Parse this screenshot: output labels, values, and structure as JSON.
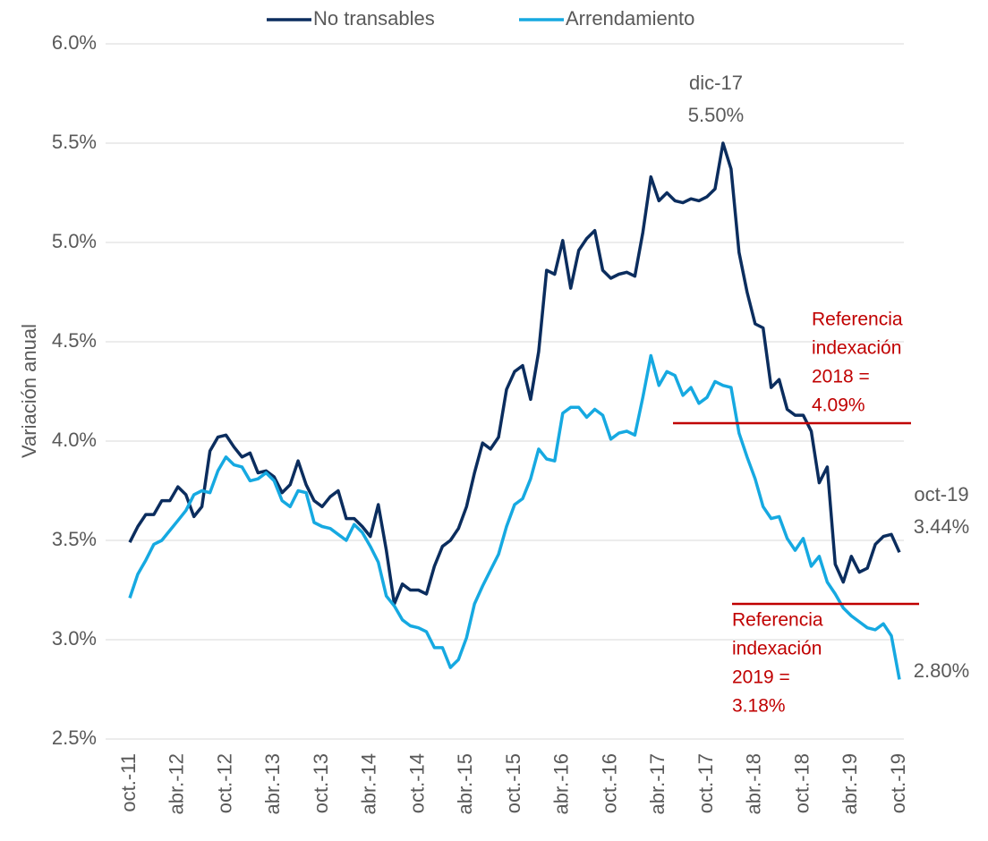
{
  "chart_data": {
    "type": "line",
    "y_label": "Variación anual",
    "categories": [
      "oct.-11",
      null,
      null,
      null,
      null,
      null,
      "abr.-12",
      null,
      null,
      null,
      null,
      null,
      "oct.-12",
      null,
      null,
      null,
      null,
      null,
      "abr.-13",
      null,
      null,
      null,
      null,
      null,
      "oct.-13",
      null,
      null,
      null,
      null,
      null,
      "abr.-14",
      null,
      null,
      null,
      null,
      null,
      "oct.-14",
      null,
      null,
      null,
      null,
      null,
      "abr.-15",
      null,
      null,
      null,
      null,
      null,
      "oct.-15",
      null,
      null,
      null,
      null,
      null,
      "abr.-16",
      null,
      null,
      null,
      null,
      null,
      "oct.-16",
      null,
      null,
      null,
      null,
      null,
      "abr.-17",
      null,
      null,
      null,
      null,
      null,
      "oct.-17",
      null,
      null,
      null,
      null,
      null,
      "abr.-18",
      null,
      null,
      null,
      null,
      null,
      "oct.-18",
      null,
      null,
      null,
      null,
      null,
      "abr.-19",
      null,
      null,
      null,
      null,
      null,
      "oct.-19"
    ],
    "series": [
      {
        "name": "No transables",
        "color": "#0b2d5e",
        "values": [
          3.49,
          3.57,
          3.63,
          3.63,
          3.7,
          3.7,
          3.77,
          3.73,
          3.62,
          3.67,
          3.95,
          4.02,
          4.03,
          3.97,
          3.92,
          3.94,
          3.84,
          3.85,
          3.82,
          3.74,
          3.78,
          3.9,
          3.78,
          3.7,
          3.67,
          3.72,
          3.75,
          3.61,
          3.61,
          3.57,
          3.52,
          3.68,
          3.45,
          3.18,
          3.28,
          3.25,
          3.25,
          3.23,
          3.37,
          3.47,
          3.5,
          3.56,
          3.67,
          3.84,
          3.99,
          3.96,
          4.02,
          4.26,
          4.35,
          4.38,
          4.21,
          4.45,
          4.86,
          4.84,
          5.01,
          4.77,
          4.96,
          5.02,
          5.06,
          4.86,
          4.82,
          4.84,
          4.85,
          4.83,
          5.05,
          5.33,
          5.21,
          5.25,
          5.21,
          5.2,
          5.22,
          5.21,
          5.23,
          5.27,
          5.5,
          5.37,
          4.95,
          4.75,
          4.59,
          4.57,
          4.27,
          4.31,
          4.16,
          4.13,
          4.13,
          4.05,
          3.79,
          3.87,
          3.38,
          3.29,
          3.42,
          3.34,
          3.36,
          3.48,
          3.52,
          3.53,
          3.44
        ]
      },
      {
        "name": "Arrendamiento",
        "color": "#16a9e1",
        "values": [
          3.21,
          3.33,
          3.4,
          3.48,
          3.5,
          3.55,
          3.6,
          3.65,
          3.73,
          3.75,
          3.74,
          3.85,
          3.92,
          3.88,
          3.87,
          3.8,
          3.81,
          3.84,
          3.8,
          3.7,
          3.67,
          3.75,
          3.74,
          3.59,
          3.57,
          3.56,
          3.53,
          3.5,
          3.58,
          3.54,
          3.47,
          3.39,
          3.22,
          3.17,
          3.1,
          3.07,
          3.06,
          3.04,
          2.96,
          2.96,
          2.86,
          2.9,
          3.01,
          3.18,
          3.27,
          3.35,
          3.43,
          3.57,
          3.68,
          3.71,
          3.81,
          3.96,
          3.91,
          3.9,
          4.14,
          4.17,
          4.17,
          4.12,
          4.16,
          4.13,
          4.01,
          4.04,
          4.05,
          4.03,
          4.22,
          4.43,
          4.28,
          4.35,
          4.33,
          4.23,
          4.27,
          4.19,
          4.22,
          4.3,
          4.28,
          4.27,
          4.04,
          3.92,
          3.81,
          3.67,
          3.61,
          3.62,
          3.51,
          3.45,
          3.51,
          3.37,
          3.42,
          3.29,
          3.23,
          3.16,
          3.12,
          3.09,
          3.06,
          3.05,
          3.08,
          3.02,
          2.8
        ]
      }
    ],
    "ylim": [
      2.5,
      6.0
    ],
    "yticks": [
      {
        "value": 2.5,
        "label": "2.5%"
      },
      {
        "value": 3.0,
        "label": "3.0%"
      },
      {
        "value": 3.5,
        "label": "3.5%"
      },
      {
        "value": 4.0,
        "label": "4.0%"
      },
      {
        "value": 4.5,
        "label": "4.5%"
      },
      {
        "value": 5.0,
        "label": "5.0%"
      },
      {
        "value": 5.5,
        "label": "5.5%"
      },
      {
        "value": 6.0,
        "label": "6.0%"
      }
    ],
    "grid": true,
    "legend": "top",
    "annotations": [
      {
        "lines": [
          "dic-17",
          "5.50%"
        ]
      },
      {
        "lines": [
          "oct-19",
          "3.44%"
        ]
      },
      {
        "lines": [
          "2.80%"
        ]
      }
    ],
    "reference_lines": [
      {
        "lines": [
          "Referencia",
          "indexación",
          "2018 =",
          "4.09%"
        ],
        "value": 4.09,
        "color": "#c00000"
      },
      {
        "lines": [
          "Referencia",
          "indexación",
          "2019 =",
          "3.18%"
        ],
        "value": 3.18,
        "color": "#c00000"
      }
    ]
  }
}
